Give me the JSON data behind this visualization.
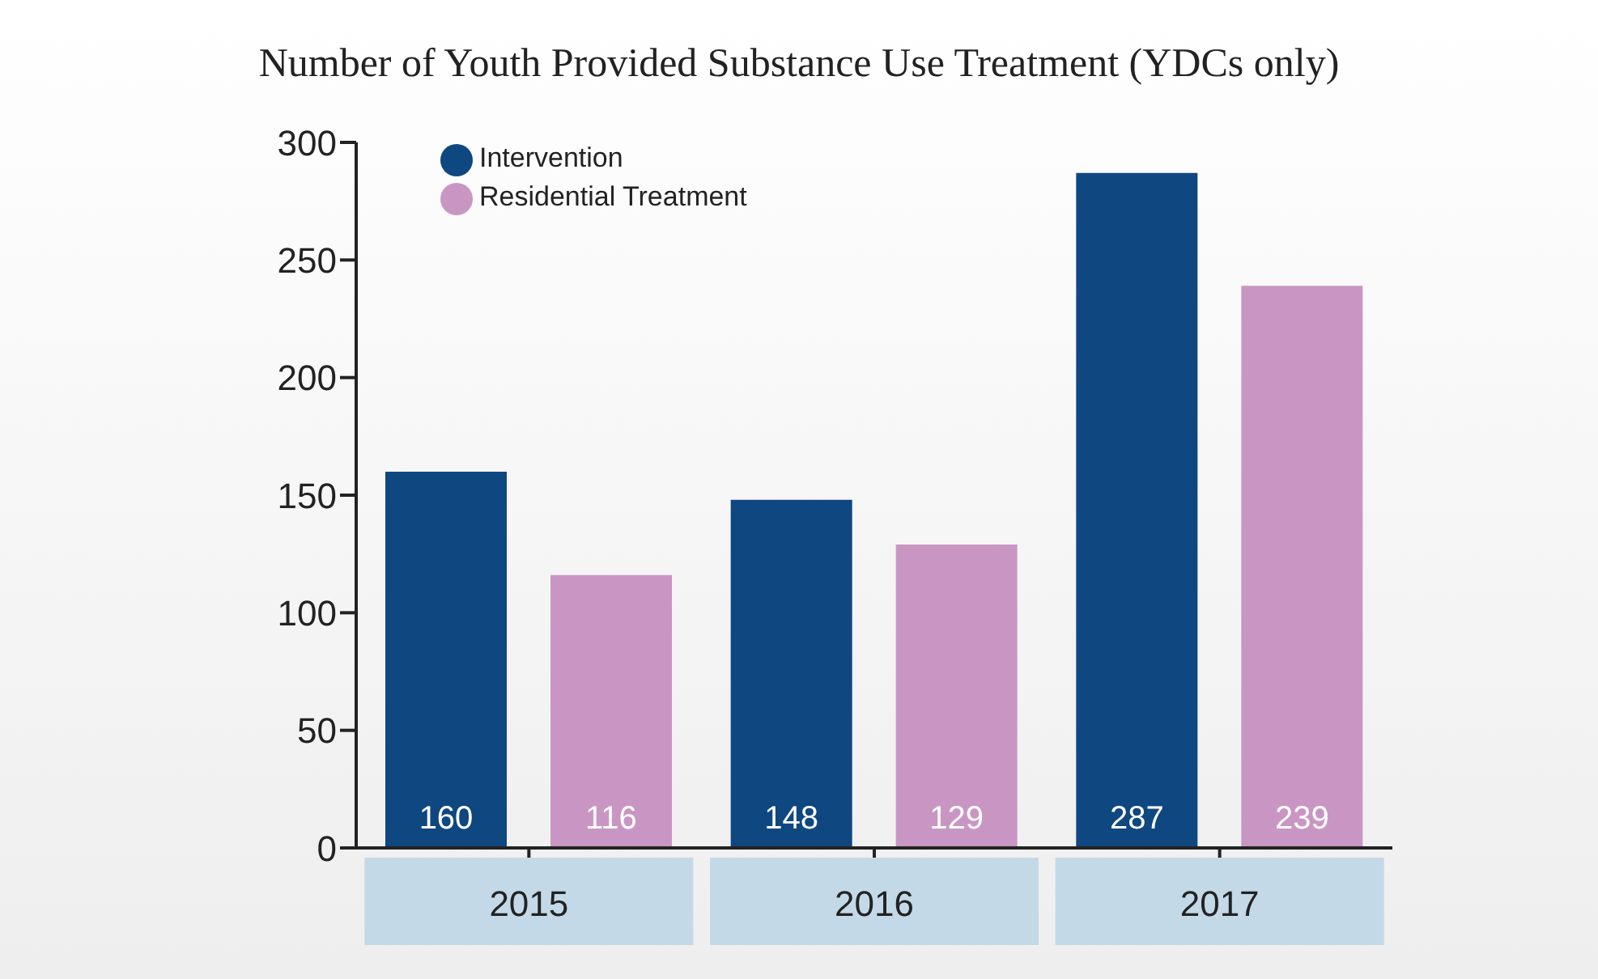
{
  "chart_data": {
    "type": "bar",
    "title": "Number of Youth Provided Substance Use Treatment (YDCs only)",
    "categories": [
      "2015",
      "2016",
      "2017"
    ],
    "series": [
      {
        "name": "Intervention",
        "color": "#0f4780",
        "values": [
          160,
          148,
          287
        ]
      },
      {
        "name": "Residential Treatment",
        "color": "#c996c4",
        "values": [
          116,
          129,
          239
        ]
      }
    ],
    "ylim": [
      0,
      300
    ],
    "yticks": [
      0,
      50,
      100,
      150,
      200,
      250,
      300
    ],
    "grid": false,
    "legend": "top left",
    "data_labels": true
  }
}
